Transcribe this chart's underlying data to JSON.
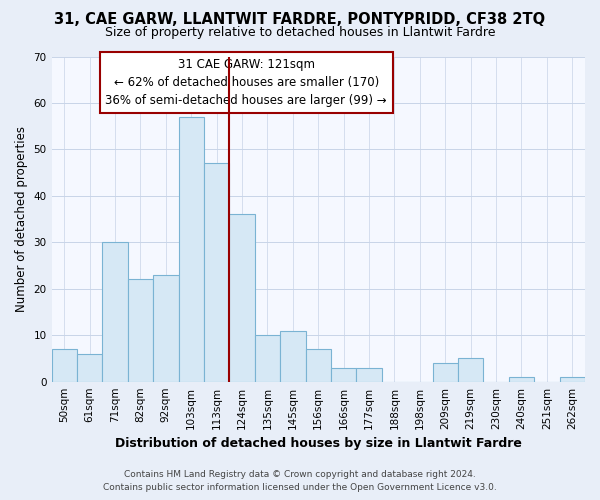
{
  "title": "31, CAE GARW, LLANTWIT FARDRE, PONTYPRIDD, CF38 2TQ",
  "subtitle": "Size of property relative to detached houses in Llantwit Fardre",
  "xlabel": "Distribution of detached houses by size in Llantwit Fardre",
  "ylabel": "Number of detached properties",
  "bar_labels": [
    "50sqm",
    "61sqm",
    "71sqm",
    "82sqm",
    "92sqm",
    "103sqm",
    "113sqm",
    "124sqm",
    "135sqm",
    "145sqm",
    "156sqm",
    "166sqm",
    "177sqm",
    "188sqm",
    "198sqm",
    "209sqm",
    "219sqm",
    "230sqm",
    "240sqm",
    "251sqm",
    "262sqm"
  ],
  "bar_values": [
    7,
    6,
    30,
    22,
    23,
    57,
    47,
    36,
    10,
    11,
    7,
    3,
    3,
    0,
    0,
    4,
    5,
    0,
    1,
    0,
    1
  ],
  "bar_color": "#d6e8f5",
  "bar_edge_color": "#7ab3d3",
  "vline_x_index": 7,
  "vline_color": "#990000",
  "annotation_title": "31 CAE GARW: 121sqm",
  "annotation_line1": "← 62% of detached houses are smaller (170)",
  "annotation_line2": "36% of semi-detached houses are larger (99) →",
  "ylim": [
    0,
    70
  ],
  "yticks": [
    0,
    10,
    20,
    30,
    40,
    50,
    60,
    70
  ],
  "footer_line1": "Contains HM Land Registry data © Crown copyright and database right 2024.",
  "footer_line2": "Contains public sector information licensed under the Open Government Licence v3.0.",
  "bg_color": "#e8eef8",
  "plot_bg_color": "#f5f8ff",
  "grid_color": "#c8d4e8",
  "title_fontsize": 10.5,
  "subtitle_fontsize": 9,
  "xlabel_fontsize": 9,
  "ylabel_fontsize": 8.5,
  "tick_fontsize": 7.5,
  "footer_fontsize": 6.5,
  "ann_fontsize": 8.5
}
